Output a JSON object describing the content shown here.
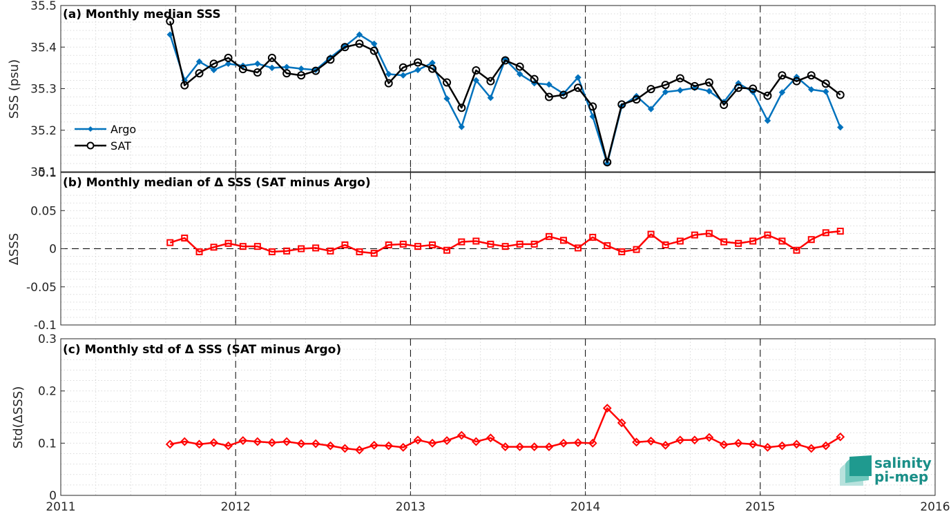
{
  "x_axis": {
    "ticks": [
      "2011",
      "2012",
      "2013",
      "2014",
      "2015",
      "2016"
    ],
    "range": [
      2011,
      2016
    ],
    "year_lines": [
      2012,
      2013,
      2014,
      2015
    ]
  },
  "months": [
    2011.625,
    2011.708,
    2011.792,
    2011.875,
    2011.958,
    2012.042,
    2012.125,
    2012.208,
    2012.292,
    2012.375,
    2012.458,
    2012.542,
    2012.625,
    2012.708,
    2012.792,
    2012.875,
    2012.958,
    2013.042,
    2013.125,
    2013.208,
    2013.292,
    2013.375,
    2013.458,
    2013.542,
    2013.625,
    2013.708,
    2013.792,
    2013.875,
    2013.958,
    2014.042,
    2014.125,
    2014.208,
    2014.292,
    2014.375,
    2014.458,
    2014.542,
    2014.625,
    2014.708,
    2014.792,
    2014.875,
    2014.958,
    2015.042,
    2015.125,
    2015.208,
    2015.292,
    2015.375,
    2015.458
  ],
  "colors": {
    "argo": "#0072bd",
    "sat": "#000000",
    "delta": "#ff0000",
    "grid": "#d9d9d9"
  },
  "logo": {
    "line1": "salinity",
    "line2": "pi-mep"
  },
  "chart_data": [
    {
      "type": "line",
      "title": "(a) Monthly median SSS",
      "ylabel": "SSS (psu)",
      "ylim": [
        35.1,
        35.5
      ],
      "yticks": [
        "35.1",
        "35.2",
        "35.3",
        "35.4",
        "35.5"
      ],
      "legend": "lower-left",
      "grid": true,
      "series": [
        {
          "name": "Argo",
          "marker": "diamond",
          "values": [
            35.43,
            35.32,
            35.365,
            35.345,
            35.36,
            35.355,
            35.36,
            35.35,
            35.352,
            35.348,
            35.345,
            35.375,
            35.402,
            35.43,
            35.408,
            35.335,
            35.332,
            35.345,
            35.362,
            35.276,
            35.208,
            35.32,
            35.278,
            35.37,
            35.335,
            35.313,
            35.31,
            35.288,
            35.327,
            35.233,
            35.12,
            35.258,
            35.282,
            35.251,
            35.292,
            35.296,
            35.302,
            35.294,
            35.268,
            35.313,
            35.292,
            35.223,
            35.291,
            35.328,
            35.298,
            35.293,
            35.207
          ]
        },
        {
          "name": "SAT",
          "marker": "circle",
          "values": [
            35.462,
            35.308,
            35.337,
            35.36,
            35.374,
            35.347,
            35.339,
            35.374,
            35.337,
            35.332,
            35.343,
            35.37,
            35.4,
            35.408,
            35.391,
            35.313,
            35.351,
            35.363,
            35.348,
            35.315,
            35.254,
            35.344,
            35.318,
            35.368,
            35.353,
            35.323,
            35.28,
            35.285,
            35.302,
            35.257,
            35.123,
            35.262,
            35.274,
            35.299,
            35.309,
            35.325,
            35.306,
            35.315,
            35.261,
            35.302,
            35.3,
            35.283,
            35.332,
            35.318,
            35.332,
            35.312,
            35.285
          ]
        }
      ]
    },
    {
      "type": "line",
      "title": "(b) Monthly median of Δ SSS (SAT minus Argo)",
      "ylabel": "ΔSSS",
      "ylim": [
        -0.1,
        0.1
      ],
      "yticks": [
        "-0.1",
        "-0.05",
        "0",
        "0.05",
        "0.1"
      ],
      "zero_line": true,
      "grid": true,
      "series": [
        {
          "marker": "square",
          "values": [
            0.008,
            0.014,
            -0.004,
            0.002,
            0.007,
            0.003,
            0.003,
            -0.004,
            -0.003,
            0.0,
            0.001,
            -0.003,
            0.005,
            -0.004,
            -0.006,
            0.005,
            0.006,
            0.003,
            0.005,
            -0.002,
            0.009,
            0.01,
            0.006,
            0.003,
            0.006,
            0.006,
            0.016,
            0.011,
            0.001,
            0.015,
            0.004,
            -0.004,
            -0.001,
            0.019,
            0.005,
            0.01,
            0.018,
            0.02,
            0.009,
            0.007,
            0.01,
            0.018,
            0.01,
            -0.002,
            0.012,
            0.021,
            0.023
          ]
        }
      ]
    },
    {
      "type": "line",
      "title": "(c) Monthly std of Δ SSS (SAT minus Argo)",
      "ylabel": "Std(ΔSSS)",
      "ylim": [
        0,
        0.3
      ],
      "yticks": [
        "0",
        "0.1",
        "0.2",
        "0.3"
      ],
      "grid": true,
      "series": [
        {
          "marker": "diamond",
          "values": [
            0.098,
            0.103,
            0.098,
            0.101,
            0.095,
            0.105,
            0.103,
            0.101,
            0.103,
            0.099,
            0.099,
            0.095,
            0.09,
            0.087,
            0.096,
            0.095,
            0.092,
            0.106,
            0.1,
            0.105,
            0.115,
            0.103,
            0.11,
            0.093,
            0.093,
            0.093,
            0.093,
            0.1,
            0.101,
            0.1,
            0.167,
            0.139,
            0.102,
            0.104,
            0.096,
            0.106,
            0.106,
            0.111,
            0.097,
            0.1,
            0.098,
            0.092,
            0.095,
            0.098,
            0.09,
            0.095,
            0.112
          ]
        }
      ]
    }
  ]
}
